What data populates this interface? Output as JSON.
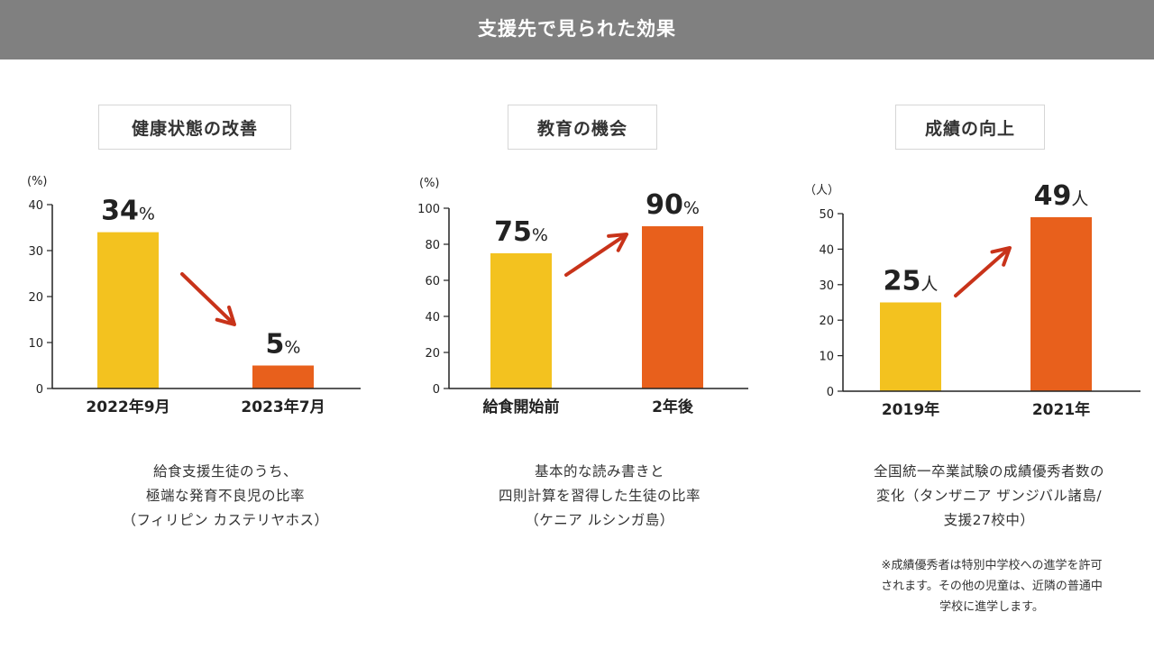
{
  "header": {
    "title": "支援先で見られた効果"
  },
  "panels": [
    {
      "title": "健康状態の改善",
      "caption": [
        "給食支援生徒のうち、",
        "極端な発育不良児の比率",
        "（フィリピン カステリヤホス）"
      ]
    },
    {
      "title": "教育の機会",
      "caption": [
        "基本的な読み書きと",
        "四則計算を習得した生徒の比率",
        "（ケニア ルシンガ島）"
      ]
    },
    {
      "title": "成績の向上",
      "caption": [
        "全国統一卒業試験の成績優秀者数の",
        "変化（タンザニア ザンジバル諸島/",
        "支援27校中）"
      ],
      "note": [
        "※成績優秀者は特別中学校への進学を許可",
        "されます。その他の児童は、近隣の普通中",
        "学校に進学します。"
      ]
    }
  ],
  "colors": {
    "before": "#F3C21F",
    "after": "#E8601C",
    "arrow": "#C8331A",
    "header_bg": "#808080"
  },
  "chart_data": [
    {
      "type": "bar",
      "ylabel": "(%)",
      "ylim": [
        0,
        40
      ],
      "yticks": [
        0,
        10,
        20,
        30,
        40
      ],
      "categories": [
        "2022年9月",
        "2023年7月"
      ],
      "values": [
        34,
        5
      ],
      "value_labels": [
        {
          "num": "34",
          "unit": "%"
        },
        {
          "num": "5",
          "unit": "%"
        }
      ],
      "trend": "down"
    },
    {
      "type": "bar",
      "ylabel": "(%)",
      "ylim": [
        0,
        100
      ],
      "yticks": [
        0,
        20,
        40,
        60,
        80,
        100
      ],
      "categories": [
        "給食開始前",
        "2年後"
      ],
      "values": [
        75,
        90
      ],
      "value_labels": [
        {
          "num": "75",
          "unit": "%"
        },
        {
          "num": "90",
          "unit": "%"
        }
      ],
      "trend": "up"
    },
    {
      "type": "bar",
      "ylabel": "（人）",
      "ylim": [
        0,
        50
      ],
      "yticks": [
        0,
        10,
        20,
        30,
        40,
        50
      ],
      "categories": [
        "2019年",
        "2021年"
      ],
      "values": [
        25,
        49
      ],
      "value_labels": [
        {
          "num": "25",
          "unit": "人"
        },
        {
          "num": "49",
          "unit": "人"
        }
      ],
      "trend": "up"
    }
  ]
}
